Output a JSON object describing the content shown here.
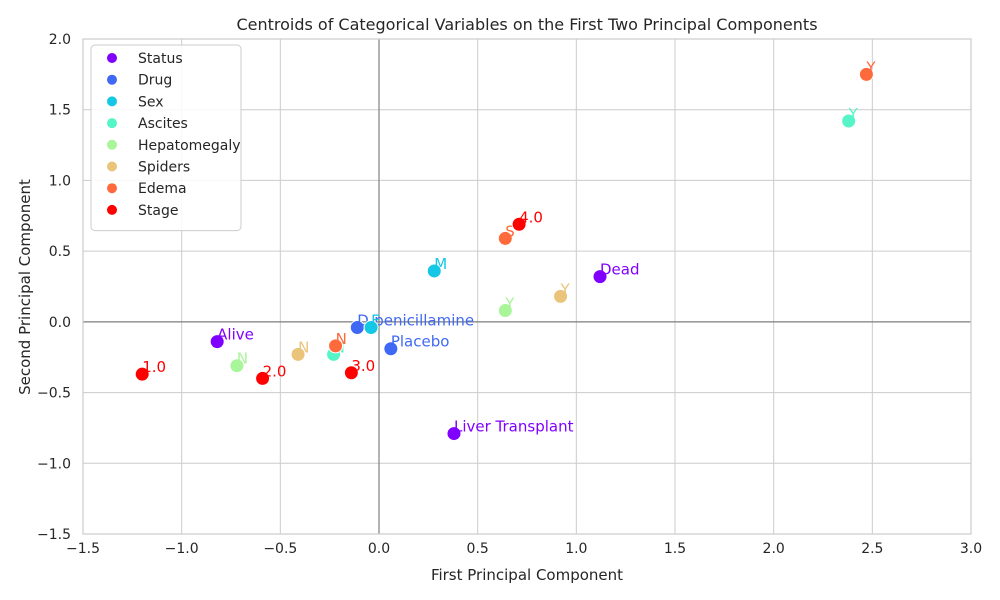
{
  "chart_data": {
    "type": "scatter",
    "title": "Centroids of Categorical Variables on the First Two Principal Components",
    "xlabel": "First Principal Component",
    "ylabel": "Second Principal Component",
    "xlim": [
      -1.5,
      3.0
    ],
    "ylim": [
      -1.5,
      2.0
    ],
    "xticks": [
      -1.5,
      -1.0,
      -0.5,
      0.0,
      0.5,
      1.0,
      1.5,
      2.0,
      2.5,
      3.0
    ],
    "yticks": [
      -1.5,
      -1.0,
      -0.5,
      0.0,
      0.5,
      1.0,
      1.5,
      2.0
    ],
    "xtick_labels": [
      "−1.5",
      "−1.0",
      "−0.5",
      "0.0",
      "0.5",
      "1.0",
      "1.5",
      "2.0",
      "2.5",
      "3.0"
    ],
    "ytick_labels": [
      "−1.5",
      "−1.0",
      "−0.5",
      "0.0",
      "0.5",
      "1.0",
      "1.5",
      "2.0"
    ],
    "grid": true,
    "zero_lines": true,
    "legend_position": "top-left",
    "series": [
      {
        "name": "Status",
        "color": "#8000ff",
        "points": [
          {
            "label": "Alive",
            "x": -0.82,
            "y": -0.14
          },
          {
            "label": "Dead",
            "x": 1.12,
            "y": 0.32
          },
          {
            "label": "Liver Transplant",
            "x": 0.38,
            "y": -0.79
          }
        ]
      },
      {
        "name": "Drug",
        "color": "#3f69f4",
        "points": [
          {
            "label": "D-penicillamine",
            "x": -0.11,
            "y": -0.04
          },
          {
            "label": "Placebo",
            "x": 0.06,
            "y": -0.19
          }
        ]
      },
      {
        "name": "Sex",
        "color": "#14c7e5",
        "points": [
          {
            "label": "F",
            "x": -0.04,
            "y": -0.04
          },
          {
            "label": "M",
            "x": 0.28,
            "y": 0.36
          }
        ]
      },
      {
        "name": "Ascites",
        "color": "#56f5c7",
        "points": [
          {
            "label": "N",
            "x": -0.23,
            "y": -0.23
          },
          {
            "label": "Y",
            "x": 2.38,
            "y": 1.42
          }
        ]
      },
      {
        "name": "Hepatomegaly",
        "color": "#a8f59a",
        "points": [
          {
            "label": "N",
            "x": -0.72,
            "y": -0.31
          },
          {
            "label": "Y",
            "x": 0.64,
            "y": 0.08
          }
        ]
      },
      {
        "name": "Spiders",
        "color": "#eac47a",
        "points": [
          {
            "label": "N",
            "x": -0.41,
            "y": -0.23
          },
          {
            "label": "Y",
            "x": 0.92,
            "y": 0.18
          }
        ]
      },
      {
        "name": "Edema",
        "color": "#ff6a3c",
        "points": [
          {
            "label": "N",
            "x": -0.22,
            "y": -0.17
          },
          {
            "label": "S",
            "x": 0.64,
            "y": 0.59
          },
          {
            "label": "Y",
            "x": 2.47,
            "y": 1.75
          }
        ]
      },
      {
        "name": "Stage",
        "color": "#ff0000",
        "points": [
          {
            "label": "1.0",
            "x": -1.2,
            "y": -0.37
          },
          {
            "label": "2.0",
            "x": -0.59,
            "y": -0.4
          },
          {
            "label": "3.0",
            "x": -0.14,
            "y": -0.36
          },
          {
            "label": "4.0",
            "x": 0.71,
            "y": 0.69
          }
        ]
      }
    ]
  }
}
